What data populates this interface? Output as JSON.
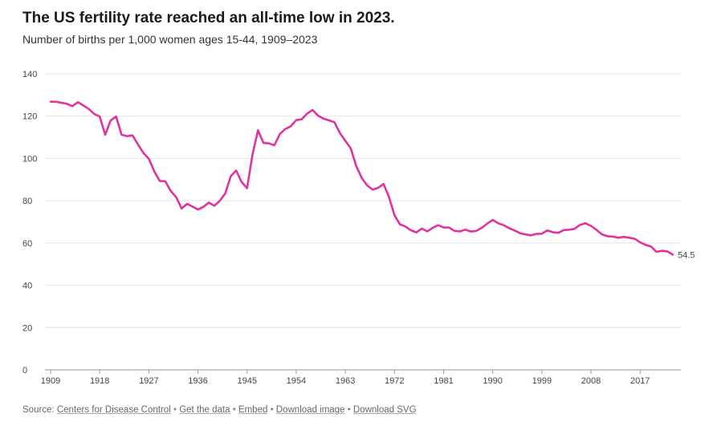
{
  "header": {
    "title": "The US fertility rate reached an all-time low in 2023.",
    "subtitle": "Number of births per 1,000 women ages 15-44, 1909–2023"
  },
  "footer": {
    "source_label": "Source:",
    "source_link": "Centers for Disease Control",
    "get_data": "Get the data",
    "embed": "Embed",
    "download_image": "Download image",
    "download_svg": "Download SVG",
    "separator": "•"
  },
  "colors": {
    "line": "#e0339b",
    "grid": "#e3e3e3",
    "axis": "#999999"
  },
  "chart_data": {
    "type": "line",
    "title": "The US fertility rate reached an all-time low in 2023.",
    "subtitle": "Number of births per 1,000 women ages 15-44, 1909–2023",
    "xlim": [
      1909,
      2023
    ],
    "ylim": [
      0,
      140
    ],
    "y_ticks": [
      0,
      20,
      40,
      60,
      80,
      100,
      120,
      140
    ],
    "x_ticks": [
      1909,
      1918,
      1927,
      1936,
      1945,
      1954,
      1963,
      1972,
      1981,
      1990,
      1999,
      2008,
      2017
    ],
    "grid": true,
    "end_label": "54.5",
    "series": [
      {
        "x": [
          1909,
          1910,
          1911,
          1912,
          1913,
          1914,
          1915,
          1916,
          1917,
          1918,
          1919,
          1920,
          1921,
          1922,
          1923,
          1924,
          1925,
          1926,
          1927,
          1928,
          1929,
          1930,
          1931,
          1932,
          1933,
          1934,
          1935,
          1936,
          1937,
          1938,
          1939,
          1940,
          1941,
          1942,
          1943,
          1944,
          1945,
          1946,
          1947,
          1948,
          1949,
          1950,
          1951,
          1952,
          1953,
          1954,
          1955,
          1956,
          1957,
          1958,
          1959,
          1960,
          1961,
          1962,
          1963,
          1964,
          1965,
          1966,
          1967,
          1968,
          1969,
          1970,
          1971,
          1972,
          1973,
          1974,
          1975,
          1976,
          1977,
          1978,
          1979,
          1980,
          1981,
          1982,
          1983,
          1984,
          1985,
          1986,
          1987,
          1988,
          1989,
          1990,
          1991,
          1992,
          1993,
          1994,
          1995,
          1996,
          1997,
          1998,
          1999,
          2000,
          2001,
          2002,
          2003,
          2004,
          2005,
          2006,
          2007,
          2008,
          2009,
          2010,
          2011,
          2012,
          2013,
          2014,
          2015,
          2016,
          2017,
          2018,
          2019,
          2020,
          2021,
          2022,
          2023
        ],
        "y": [
          126.8,
          126.8,
          126.3,
          125.8,
          124.7,
          126.6,
          125.0,
          123.4,
          121.0,
          119.8,
          111.2,
          117.9,
          119.8,
          111.2,
          110.5,
          110.9,
          106.6,
          102.6,
          99.8,
          93.8,
          89.3,
          89.2,
          84.6,
          81.7,
          76.3,
          78.5,
          77.2,
          75.8,
          77.1,
          79.1,
          77.6,
          79.9,
          83.4,
          91.5,
          94.3,
          88.8,
          85.9,
          101.9,
          113.3,
          107.3,
          107.1,
          106.2,
          111.5,
          113.9,
          115.2,
          118.1,
          118.5,
          121.2,
          122.9,
          120.2,
          118.8,
          118.0,
          117.1,
          112.0,
          108.3,
          104.7,
          96.3,
          90.8,
          87.2,
          85.2,
          86.1,
          87.9,
          81.6,
          73.1,
          68.8,
          67.8,
          66.0,
          65.0,
          66.8,
          65.5,
          67.2,
          68.4,
          67.3,
          67.3,
          65.7,
          65.5,
          66.3,
          65.4,
          65.7,
          67.2,
          69.2,
          70.9,
          69.3,
          68.4,
          67.0,
          65.9,
          64.6,
          64.1,
          63.6,
          64.3,
          64.4,
          65.9,
          65.1,
          64.8,
          66.1,
          66.3,
          66.7,
          68.6,
          69.3,
          68.1,
          66.2,
          64.1,
          63.2,
          63.0,
          62.5,
          62.9,
          62.5,
          62.0,
          60.3,
          59.1,
          58.3,
          55.8,
          56.3,
          56.0,
          54.5
        ]
      }
    ]
  }
}
